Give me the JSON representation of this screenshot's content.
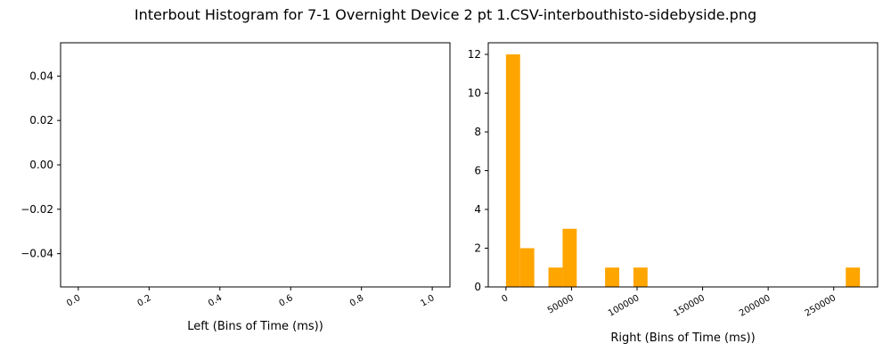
{
  "figure": {
    "suptitle": "Interbout Histogram for 7-1 Overnight Device 2 pt 1.CSV-interbouthisto-sidebyside.png",
    "bar_color": "#ffa500"
  },
  "chart_data": [
    {
      "type": "bar",
      "title": "",
      "xlabel": "Left (Bins of Time (ms))",
      "ylabel": "",
      "xlim": [
        -0.05,
        1.05
      ],
      "ylim": [
        -0.055,
        0.055
      ],
      "xticks": [
        0.0,
        0.2,
        0.4,
        0.6,
        0.8,
        1.0
      ],
      "xtick_labels": [
        "0.0",
        "0.2",
        "0.4",
        "0.6",
        "0.8",
        "1.0"
      ],
      "yticks": [
        -0.04,
        -0.02,
        0.0,
        0.02,
        0.04
      ],
      "ytick_labels": [
        "−0.04",
        "−0.02",
        "0.00",
        "0.02",
        "0.04"
      ],
      "bins": []
    },
    {
      "type": "bar",
      "title": "",
      "xlabel": "Right (Bins of Time (ms))",
      "ylabel": "",
      "xlim": [
        -13500,
        283500
      ],
      "ylim": [
        0,
        12.6
      ],
      "xticks": [
        0,
        50000,
        100000,
        150000,
        200000,
        250000
      ],
      "xtick_labels": [
        "0",
        "50000",
        "100000",
        "150000",
        "200000",
        "250000"
      ],
      "yticks": [
        0,
        2,
        4,
        6,
        8,
        10,
        12
      ],
      "ytick_labels": [
        "0",
        "2",
        "4",
        "6",
        "8",
        "10",
        "12"
      ],
      "bins": [
        {
          "x0": 0,
          "x1": 10800,
          "count": 12
        },
        {
          "x0": 10800,
          "x1": 21600,
          "count": 2
        },
        {
          "x0": 32400,
          "x1": 43200,
          "count": 1
        },
        {
          "x0": 43200,
          "x1": 54000,
          "count": 3
        },
        {
          "x0": 75600,
          "x1": 86400,
          "count": 1
        },
        {
          "x0": 97200,
          "x1": 108000,
          "count": 1
        },
        {
          "x0": 259200,
          "x1": 270000,
          "count": 1
        }
      ]
    }
  ]
}
